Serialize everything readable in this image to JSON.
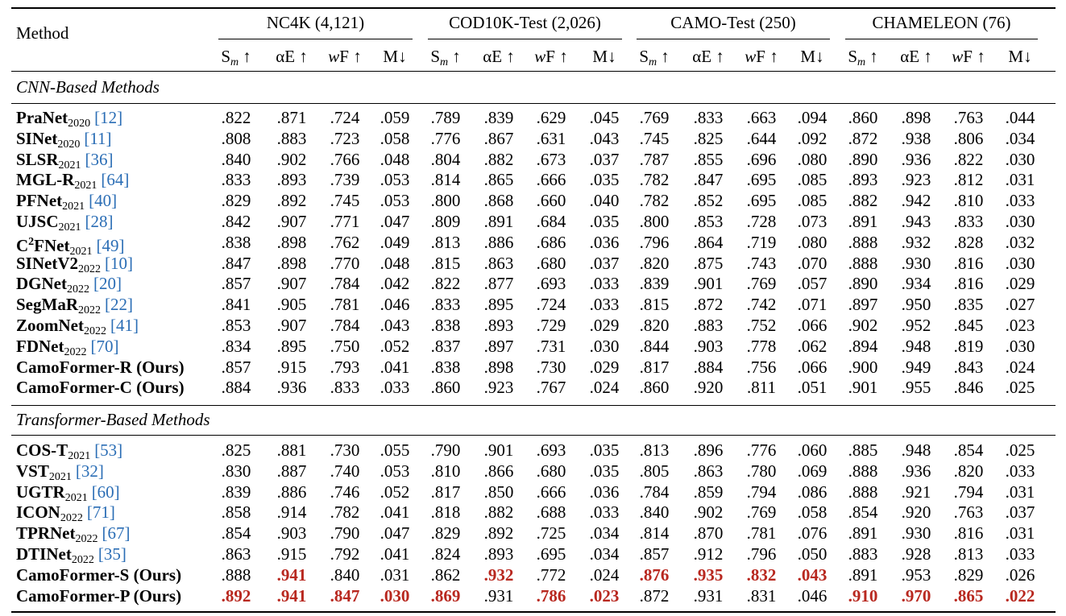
{
  "table": {
    "header": {
      "method": "Method",
      "groups": [
        "NC4K (4,121)",
        "COD10K-Test (2,026)",
        "CAMO-Test (250)",
        "CHAMELEON (76)"
      ],
      "metrics": [
        {
          "main": "S",
          "sub": "m",
          "suffix": "↑"
        },
        {
          "main": "αE ↑"
        },
        {
          "italic": "w",
          "main": "F ↑"
        },
        {
          "main": "M↓"
        }
      ]
    },
    "highlight_color": "#b8281f",
    "sections": [
      {
        "title": "CNN-Based Methods",
        "rows": [
          {
            "name": "PraNet",
            "year": "2020",
            "ref": "[12]",
            "values": [
              ".822",
              ".871",
              ".724",
              ".059",
              ".789",
              ".839",
              ".629",
              ".045",
              ".769",
              ".833",
              ".663",
              ".094",
              ".860",
              ".898",
              ".763",
              ".044"
            ]
          },
          {
            "name": "SINet",
            "year": "2020",
            "ref": "[11]",
            "values": [
              ".808",
              ".883",
              ".723",
              ".058",
              ".776",
              ".867",
              ".631",
              ".043",
              ".745",
              ".825",
              ".644",
              ".092",
              ".872",
              ".938",
              ".806",
              ".034"
            ]
          },
          {
            "name": "SLSR",
            "year": "2021",
            "ref": "[36]",
            "values": [
              ".840",
              ".902",
              ".766",
              ".048",
              ".804",
              ".882",
              ".673",
              ".037",
              ".787",
              ".855",
              ".696",
              ".080",
              ".890",
              ".936",
              ".822",
              ".030"
            ]
          },
          {
            "name": "MGL-R",
            "year": "2021",
            "ref": "[64]",
            "values": [
              ".833",
              ".893",
              ".739",
              ".053",
              ".814",
              ".865",
              ".666",
              ".035",
              ".782",
              ".847",
              ".695",
              ".085",
              ".893",
              ".923",
              ".812",
              ".031"
            ]
          },
          {
            "name": "PFNet",
            "year": "2021",
            "ref": "[40]",
            "values": [
              ".829",
              ".892",
              ".745",
              ".053",
              ".800",
              ".868",
              ".660",
              ".040",
              ".782",
              ".852",
              ".695",
              ".085",
              ".882",
              ".942",
              ".810",
              ".033"
            ]
          },
          {
            "name": "UJSC",
            "year": "2021",
            "ref": "[28]",
            "values": [
              ".842",
              ".907",
              ".771",
              ".047",
              ".809",
              ".891",
              ".684",
              ".035",
              ".800",
              ".853",
              ".728",
              ".073",
              ".891",
              ".943",
              ".833",
              ".030"
            ]
          },
          {
            "name": "C",
            "sup": "2",
            "name2": "FNet",
            "year": "2021",
            "ref": "[49]",
            "values": [
              ".838",
              ".898",
              ".762",
              ".049",
              ".813",
              ".886",
              ".686",
              ".036",
              ".796",
              ".864",
              ".719",
              ".080",
              ".888",
              ".932",
              ".828",
              ".032"
            ]
          },
          {
            "name": "SINetV2",
            "year": "2022",
            "ref": "[10]",
            "values": [
              ".847",
              ".898",
              ".770",
              ".048",
              ".815",
              ".863",
              ".680",
              ".037",
              ".820",
              ".875",
              ".743",
              ".070",
              ".888",
              ".930",
              ".816",
              ".030"
            ]
          },
          {
            "name": "DGNet",
            "year": "2022",
            "ref": "[20]",
            "values": [
              ".857",
              ".907",
              ".784",
              ".042",
              ".822",
              ".877",
              ".693",
              ".033",
              ".839",
              ".901",
              ".769",
              ".057",
              ".890",
              ".934",
              ".816",
              ".029"
            ]
          },
          {
            "name": "SegMaR",
            "year": "2022",
            "ref": "[22]",
            "values": [
              ".841",
              ".905",
              ".781",
              ".046",
              ".833",
              ".895",
              ".724",
              ".033",
              ".815",
              ".872",
              ".742",
              ".071",
              ".897",
              ".950",
              ".835",
              ".027"
            ]
          },
          {
            "name": "ZoomNet",
            "year": "2022",
            "ref": "[41]",
            "values": [
              ".853",
              ".907",
              ".784",
              ".043",
              ".838",
              ".893",
              ".729",
              ".029",
              ".820",
              ".883",
              ".752",
              ".066",
              ".902",
              ".952",
              ".845",
              ".023"
            ]
          },
          {
            "name": "FDNet",
            "year": "2022",
            "ref": "[70]",
            "values": [
              ".834",
              ".895",
              ".750",
              ".052",
              ".837",
              ".897",
              ".731",
              ".030",
              ".844",
              ".903",
              ".778",
              ".062",
              ".894",
              ".948",
              ".819",
              ".030"
            ]
          },
          {
            "name": "CamoFormer-R (Ours)",
            "values": [
              ".857",
              ".915",
              ".793",
              ".041",
              ".838",
              ".898",
              ".730",
              ".029",
              ".817",
              ".884",
              ".756",
              ".066",
              ".900",
              ".949",
              ".843",
              ".024"
            ]
          },
          {
            "name": "CamoFormer-C (Ours)",
            "values": [
              ".884",
              ".936",
              ".833",
              ".033",
              ".860",
              ".923",
              ".767",
              ".024",
              ".860",
              ".920",
              ".811",
              ".051",
              ".901",
              ".955",
              ".846",
              ".025"
            ]
          }
        ]
      },
      {
        "title": "Transformer-Based Methods",
        "rows": [
          {
            "name": "COS-T",
            "year": "2021",
            "ref": "[53]",
            "values": [
              ".825",
              ".881",
              ".730",
              ".055",
              ".790",
              ".901",
              ".693",
              ".035",
              ".813",
              ".896",
              ".776",
              ".060",
              ".885",
              ".948",
              ".854",
              ".025"
            ]
          },
          {
            "name": "VST",
            "year": "2021",
            "ref": "[32]",
            "values": [
              ".830",
              ".887",
              ".740",
              ".053",
              ".810",
              ".866",
              ".680",
              ".035",
              ".805",
              ".863",
              ".780",
              ".069",
              ".888",
              ".936",
              ".820",
              ".033"
            ]
          },
          {
            "name": "UGTR",
            "year": "2021",
            "ref": "[60]",
            "values": [
              ".839",
              ".886",
              ".746",
              ".052",
              ".817",
              ".850",
              ".666",
              ".036",
              ".784",
              ".859",
              ".794",
              ".086",
              ".888",
              ".921",
              ".794",
              ".031"
            ]
          },
          {
            "name": "ICON",
            "year": "2022",
            "ref": "[71]",
            "values": [
              ".858",
              ".914",
              ".782",
              ".041",
              ".818",
              ".882",
              ".688",
              ".033",
              ".840",
              ".902",
              ".769",
              ".058",
              ".854",
              ".920",
              ".763",
              ".037"
            ]
          },
          {
            "name": "TPRNet",
            "year": "2022",
            "ref": "[67]",
            "values": [
              ".854",
              ".903",
              ".790",
              ".047",
              ".829",
              ".892",
              ".725",
              ".034",
              ".814",
              ".870",
              ".781",
              ".076",
              ".891",
              ".930",
              ".816",
              ".031"
            ]
          },
          {
            "name": "DTINet",
            "year": "2022",
            "ref": "[35]",
            "values": [
              ".863",
              ".915",
              ".792",
              ".041",
              ".824",
              ".893",
              ".695",
              ".034",
              ".857",
              ".912",
              ".796",
              ".050",
              ".883",
              ".928",
              ".813",
              ".033"
            ]
          },
          {
            "name": "CamoFormer-S (Ours)",
            "highlight": [
              1,
              5,
              8,
              9,
              10,
              11
            ],
            "values": [
              ".888",
              ".941",
              ".840",
              ".031",
              ".862",
              ".932",
              ".772",
              ".024",
              ".876",
              ".935",
              ".832",
              ".043",
              ".891",
              ".953",
              ".829",
              ".026"
            ]
          },
          {
            "name": "CamoFormer-P (Ours)",
            "highlight": [
              0,
              1,
              2,
              3,
              4,
              6,
              7,
              12,
              13,
              14,
              15
            ],
            "values": [
              ".892",
              ".941",
              ".847",
              ".030",
              ".869",
              ".931",
              ".786",
              ".023",
              ".872",
              ".931",
              ".831",
              ".046",
              ".910",
              ".970",
              ".865",
              ".022"
            ]
          }
        ]
      }
    ]
  }
}
